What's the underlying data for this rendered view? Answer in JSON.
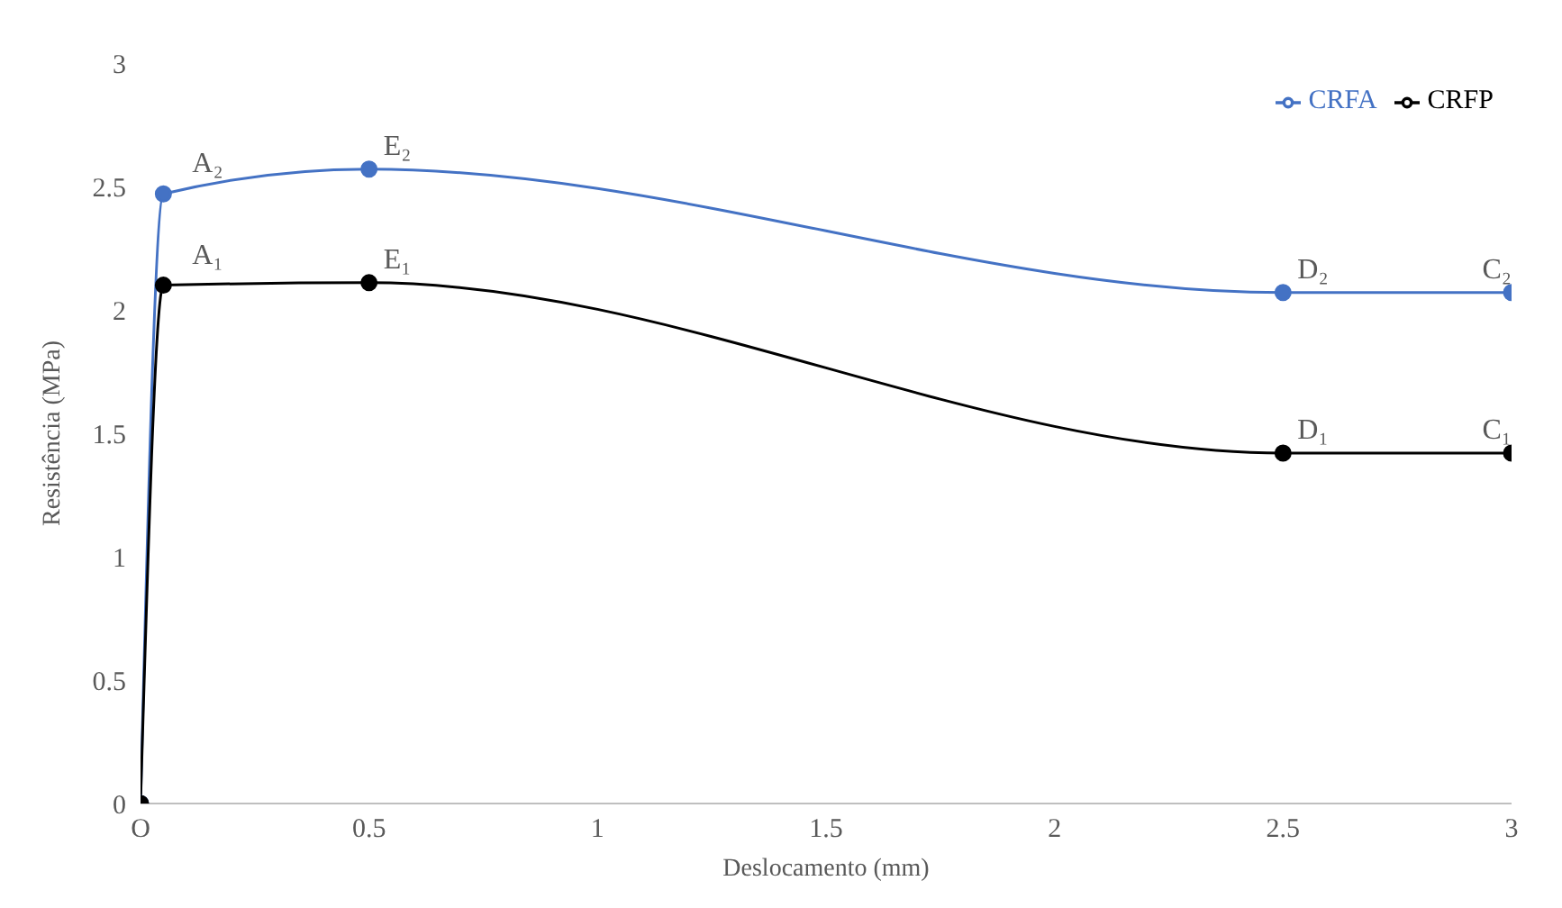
{
  "chart_data": {
    "type": "line",
    "xlabel": "Deslocamento (mm)",
    "ylabel": "Resistência (MPa)",
    "series": [
      {
        "name": "CRFA",
        "color": "#4472c4",
        "x": [
          0,
          0.05,
          0.5,
          2.5,
          3
        ],
        "values": [
          0,
          2.47,
          2.57,
          2.07,
          2.07
        ]
      },
      {
        "name": "CRFP",
        "color": "#000000",
        "x": [
          0,
          0.05,
          0.5,
          2.5,
          3
        ],
        "values": [
          0,
          2.1,
          2.11,
          1.42,
          1.42
        ]
      }
    ],
    "xlim": [
      0,
      3
    ],
    "xticks": [
      {
        "value": 0,
        "label": "O"
      },
      0.5,
      1,
      1.5,
      2,
      2.5,
      3
    ],
    "ylim": [
      0,
      3
    ],
    "yticks": [
      0,
      0.5,
      1,
      1.5,
      2,
      2.5,
      3
    ],
    "grid": false,
    "legend": "top right",
    "marker": "circle",
    "line_style": "solid",
    "annotations": [
      {
        "text": "A₂",
        "x": 0.05,
        "y": 2.47
      },
      {
        "text": "E₂",
        "x": 0.5,
        "y": 2.57
      },
      {
        "text": "D₂",
        "x": 2.5,
        "y": 2.07
      },
      {
        "text": "C₂",
        "x": 3,
        "y": 2.07
      },
      {
        "text": "A₁",
        "x": 0.05,
        "y": 2.1
      },
      {
        "text": "E₁",
        "x": 0.5,
        "y": 2.11
      },
      {
        "text": "D₁",
        "x": 2.5,
        "y": 1.42
      },
      {
        "text": "C₁",
        "x": 3,
        "y": 1.42
      }
    ]
  }
}
